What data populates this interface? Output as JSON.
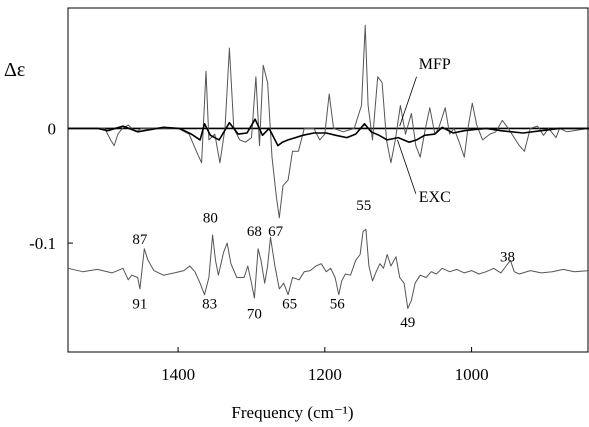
{
  "chart_data": {
    "type": "line",
    "title": "",
    "ylabel": "Δε",
    "xlabel": "Frequency (cm⁻¹)",
    "xlim": [
      1550,
      840
    ],
    "x_reversed": true,
    "ylim": [
      -0.195,
      0.105
    ],
    "x_ticks": [
      {
        "value": 1400,
        "label": "1400"
      },
      {
        "value": 1200,
        "label": "1200"
      },
      {
        "value": 1000,
        "label": "1000"
      }
    ],
    "y_ticks": [
      {
        "value": 0,
        "label": "0"
      },
      {
        "value": -0.1,
        "label": "-0.1"
      }
    ],
    "series": [
      {
        "name": "MFP",
        "color": "#555555",
        "points": [
          [
            1550,
            0.0
          ],
          [
            1500,
            0.0
          ],
          [
            1492,
            -0.01
          ],
          [
            1487,
            -0.015
          ],
          [
            1482,
            -0.005
          ],
          [
            1476,
            0.0
          ],
          [
            1468,
            0.003
          ],
          [
            1463,
            0.0
          ],
          [
            1457,
            -0.003
          ],
          [
            1450,
            0.0
          ],
          [
            1400,
            0.0
          ],
          [
            1385,
            -0.005
          ],
          [
            1375,
            -0.02
          ],
          [
            1368,
            -0.03
          ],
          [
            1362,
            0.05
          ],
          [
            1358,
            -0.01
          ],
          [
            1350,
            -0.005
          ],
          [
            1343,
            -0.03
          ],
          [
            1336,
            0.0
          ],
          [
            1330,
            0.07
          ],
          [
            1324,
            0.0
          ],
          [
            1316,
            -0.01
          ],
          [
            1308,
            -0.012
          ],
          [
            1300,
            -0.008
          ],
          [
            1294,
            0.045
          ],
          [
            1289,
            -0.015
          ],
          [
            1284,
            0.055
          ],
          [
            1278,
            0.04
          ],
          [
            1272,
            -0.025
          ],
          [
            1266,
            -0.06
          ],
          [
            1262,
            -0.078
          ],
          [
            1257,
            -0.05
          ],
          [
            1250,
            -0.045
          ],
          [
            1244,
            -0.02
          ],
          [
            1236,
            -0.02
          ],
          [
            1228,
            0.0
          ],
          [
            1215,
            0.0
          ],
          [
            1207,
            -0.01
          ],
          [
            1200,
            -0.005
          ],
          [
            1194,
            0.03
          ],
          [
            1188,
            0.0
          ],
          [
            1175,
            -0.003
          ],
          [
            1160,
            0.0
          ],
          [
            1150,
            0.02
          ],
          [
            1145,
            0.09
          ],
          [
            1141,
            0.02
          ],
          [
            1135,
            -0.01
          ],
          [
            1128,
            0.045
          ],
          [
            1122,
            0.04
          ],
          [
            1116,
            -0.01
          ],
          [
            1110,
            -0.03
          ],
          [
            1104,
            -0.01
          ],
          [
            1097,
            0.02
          ],
          [
            1090,
            -0.005
          ],
          [
            1082,
            0.013
          ],
          [
            1076,
            -0.015
          ],
          [
            1070,
            -0.025
          ],
          [
            1063,
            0.0
          ],
          [
            1057,
            0.018
          ],
          [
            1050,
            -0.005
          ],
          [
            1045,
            0.0
          ],
          [
            1036,
            0.018
          ],
          [
            1030,
            -0.005
          ],
          [
            1024,
            0.0
          ],
          [
            1018,
            -0.01
          ],
          [
            1010,
            -0.025
          ],
          [
            1005,
            0.0
          ],
          [
            999,
            0.022
          ],
          [
            993,
            0.003
          ],
          [
            985,
            -0.01
          ],
          [
            975,
            -0.005
          ],
          [
            967,
            -0.003
          ],
          [
            958,
            0.007
          ],
          [
            950,
            0.0
          ],
          [
            935,
            -0.015
          ],
          [
            928,
            -0.02
          ],
          [
            920,
            0.0
          ],
          [
            910,
            0.002
          ],
          [
            902,
            -0.006
          ],
          [
            895,
            0.0
          ],
          [
            885,
            -0.008
          ],
          [
            880,
            0.0
          ],
          [
            870,
            -0.003
          ],
          [
            840,
            0.0
          ]
        ]
      },
      {
        "name": "EXC",
        "color": "#000000",
        "points": [
          [
            1550,
            0.0
          ],
          [
            1510,
            0.0
          ],
          [
            1496,
            -0.002
          ],
          [
            1475,
            0.002
          ],
          [
            1455,
            -0.003
          ],
          [
            1420,
            0.001
          ],
          [
            1398,
            0.0
          ],
          [
            1382,
            -0.005
          ],
          [
            1370,
            -0.01
          ],
          [
            1364,
            0.004
          ],
          [
            1356,
            -0.006
          ],
          [
            1344,
            -0.01
          ],
          [
            1330,
            0.005
          ],
          [
            1318,
            -0.005
          ],
          [
            1306,
            -0.004
          ],
          [
            1295,
            0.008
          ],
          [
            1285,
            -0.006
          ],
          [
            1276,
            0.0
          ],
          [
            1264,
            -0.015
          ],
          [
            1258,
            -0.012
          ],
          [
            1250,
            -0.01
          ],
          [
            1240,
            -0.008
          ],
          [
            1230,
            -0.006
          ],
          [
            1215,
            -0.004
          ],
          [
            1198,
            -0.004
          ],
          [
            1185,
            -0.006
          ],
          [
            1170,
            -0.008
          ],
          [
            1158,
            -0.005
          ],
          [
            1146,
            0.004
          ],
          [
            1137,
            -0.003
          ],
          [
            1126,
            -0.006
          ],
          [
            1115,
            -0.01
          ],
          [
            1100,
            -0.008
          ],
          [
            1085,
            -0.012
          ],
          [
            1075,
            -0.01
          ],
          [
            1064,
            -0.006
          ],
          [
            1050,
            -0.005
          ],
          [
            1040,
            0.001
          ],
          [
            1025,
            -0.004
          ],
          [
            1010,
            -0.002
          ],
          [
            995,
            -0.001
          ],
          [
            980,
            0.0
          ],
          [
            960,
            -0.002
          ],
          [
            930,
            -0.004
          ],
          [
            905,
            -0.002
          ],
          [
            880,
            0.0
          ],
          [
            840,
            0.0
          ]
        ]
      },
      {
        "name": "",
        "color": "#555555",
        "points": [
          [
            1550,
            -0.122
          ],
          [
            1530,
            -0.125
          ],
          [
            1510,
            -0.123
          ],
          [
            1490,
            -0.126
          ],
          [
            1475,
            -0.122
          ],
          [
            1468,
            -0.132
          ],
          [
            1463,
            -0.128
          ],
          [
            1455,
            -0.13
          ],
          [
            1452,
            -0.14
          ],
          [
            1446,
            -0.105
          ],
          [
            1441,
            -0.115
          ],
          [
            1433,
            -0.124
          ],
          [
            1420,
            -0.128
          ],
          [
            1405,
            -0.126
          ],
          [
            1392,
            -0.124
          ],
          [
            1384,
            -0.12
          ],
          [
            1377,
            -0.125
          ],
          [
            1370,
            -0.135
          ],
          [
            1364,
            -0.145
          ],
          [
            1358,
            -0.13
          ],
          [
            1353,
            -0.093
          ],
          [
            1349,
            -0.115
          ],
          [
            1345,
            -0.128
          ],
          [
            1338,
            -0.108
          ],
          [
            1333,
            -0.1
          ],
          [
            1328,
            -0.118
          ],
          [
            1320,
            -0.13
          ],
          [
            1310,
            -0.13
          ],
          [
            1305,
            -0.12
          ],
          [
            1300,
            -0.135
          ],
          [
            1296,
            -0.148
          ],
          [
            1291,
            -0.105
          ],
          [
            1287,
            -0.115
          ],
          [
            1282,
            -0.135
          ],
          [
            1278,
            -0.12
          ],
          [
            1274,
            -0.095
          ],
          [
            1268,
            -0.12
          ],
          [
            1262,
            -0.14
          ],
          [
            1256,
            -0.135
          ],
          [
            1250,
            -0.145
          ],
          [
            1244,
            -0.13
          ],
          [
            1235,
            -0.132
          ],
          [
            1228,
            -0.125
          ],
          [
            1220,
            -0.124
          ],
          [
            1212,
            -0.12
          ],
          [
            1205,
            -0.118
          ],
          [
            1198,
            -0.125
          ],
          [
            1192,
            -0.122
          ],
          [
            1186,
            -0.13
          ],
          [
            1181,
            -0.145
          ],
          [
            1177,
            -0.133
          ],
          [
            1172,
            -0.127
          ],
          [
            1165,
            -0.128
          ],
          [
            1158,
            -0.115
          ],
          [
            1152,
            -0.11
          ],
          [
            1148,
            -0.09
          ],
          [
            1144,
            -0.088
          ],
          [
            1140,
            -0.12
          ],
          [
            1135,
            -0.133
          ],
          [
            1130,
            -0.125
          ],
          [
            1125,
            -0.118
          ],
          [
            1120,
            -0.122
          ],
          [
            1115,
            -0.11
          ],
          [
            1110,
            -0.12
          ],
          [
            1103,
            -0.112
          ],
          [
            1098,
            -0.13
          ],
          [
            1092,
            -0.135
          ],
          [
            1087,
            -0.157
          ],
          [
            1082,
            -0.15
          ],
          [
            1077,
            -0.135
          ],
          [
            1070,
            -0.128
          ],
          [
            1062,
            -0.13
          ],
          [
            1055,
            -0.125
          ],
          [
            1048,
            -0.127
          ],
          [
            1040,
            -0.122
          ],
          [
            1030,
            -0.125
          ],
          [
            1020,
            -0.123
          ],
          [
            1010,
            -0.126
          ],
          [
            1000,
            -0.124
          ],
          [
            990,
            -0.127
          ],
          [
            980,
            -0.125
          ],
          [
            970,
            -0.122
          ],
          [
            960,
            -0.126
          ],
          [
            953,
            -0.12
          ],
          [
            947,
            -0.115
          ],
          [
            942,
            -0.125
          ],
          [
            935,
            -0.127
          ],
          [
            920,
            -0.124
          ],
          [
            905,
            -0.126
          ],
          [
            890,
            -0.125
          ],
          [
            875,
            -0.123
          ],
          [
            860,
            -0.125
          ],
          [
            840,
            -0.124
          ]
        ]
      }
    ],
    "annotations": [
      {
        "text": "MFP",
        "x": 1072,
        "y": 0.052
      },
      {
        "text": "EXC",
        "x": 1072,
        "y": -0.064
      }
    ],
    "peak_labels": [
      {
        "text": "87",
        "x": 1452,
        "y": -0.101
      },
      {
        "text": "91",
        "x": 1452,
        "y": -0.157
      },
      {
        "text": "80",
        "x": 1356,
        "y": -0.082
      },
      {
        "text": "83",
        "x": 1357,
        "y": -0.157
      },
      {
        "text": "68",
        "x": 1296,
        "y": -0.094
      },
      {
        "text": "67",
        "x": 1267,
        "y": -0.094
      },
      {
        "text": "70",
        "x": 1296,
        "y": -0.166
      },
      {
        "text": "65",
        "x": 1248,
        "y": -0.157
      },
      {
        "text": "56",
        "x": 1183,
        "y": -0.157
      },
      {
        "text": "55",
        "x": 1147,
        "y": -0.071
      },
      {
        "text": "49",
        "x": 1087,
        "y": -0.173
      },
      {
        "text": "38",
        "x": 951,
        "y": -0.116
      }
    ]
  }
}
